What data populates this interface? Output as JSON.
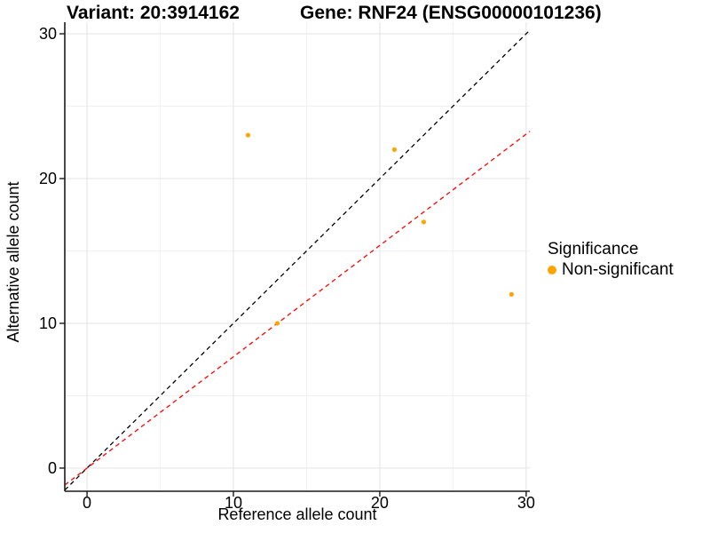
{
  "titles": {
    "variant": "Variant: 20:3914162",
    "gene": "Gene: RNF24 (ENSG00000101236)"
  },
  "legend": {
    "title": "Significance",
    "items": [
      {
        "label": "Non-significant",
        "color": "#FFA500"
      }
    ]
  },
  "chart_data": {
    "type": "scatter",
    "title": "Variant: 20:3914162 / Gene: RNF24 (ENSG00000101236)",
    "xlabel": "Reference allele count",
    "ylabel": "Alternative allele count",
    "x_ticks": [
      0,
      10,
      20,
      30
    ],
    "y_ticks": [
      0,
      10,
      20,
      30
    ],
    "x_minor_ticks": [
      5,
      15,
      25
    ],
    "y_minor_ticks": [
      5,
      15,
      25
    ],
    "xlim": [
      -1.52,
      30.25
    ],
    "ylim": [
      -1.6,
      30.8
    ],
    "grid": true,
    "legend_position": "right",
    "series": [
      {
        "name": "Non-significant",
        "color": "#FFA500",
        "points": [
          {
            "x": 11,
            "y": 23
          },
          {
            "x": 21,
            "y": 22
          },
          {
            "x": 23,
            "y": 17
          },
          {
            "x": 13,
            "y": 10
          },
          {
            "x": 29,
            "y": 12
          }
        ]
      }
    ],
    "lines": [
      {
        "name": "identity-line",
        "color": "#000000",
        "dash": "5,4",
        "slope": 1,
        "intercept": 0
      },
      {
        "name": "fit-line",
        "color": "#FF0000",
        "dash": "5,4",
        "slope": 0.769,
        "intercept": 0
      }
    ]
  },
  "colors": {
    "point": "#FFA500",
    "identity_line": "#000000",
    "fit_line": "#FF0000",
    "grid_major": "#e3e3e3",
    "grid_minor": "#f1f1f1",
    "axis": "#1a1a1a",
    "text": "#000000"
  }
}
